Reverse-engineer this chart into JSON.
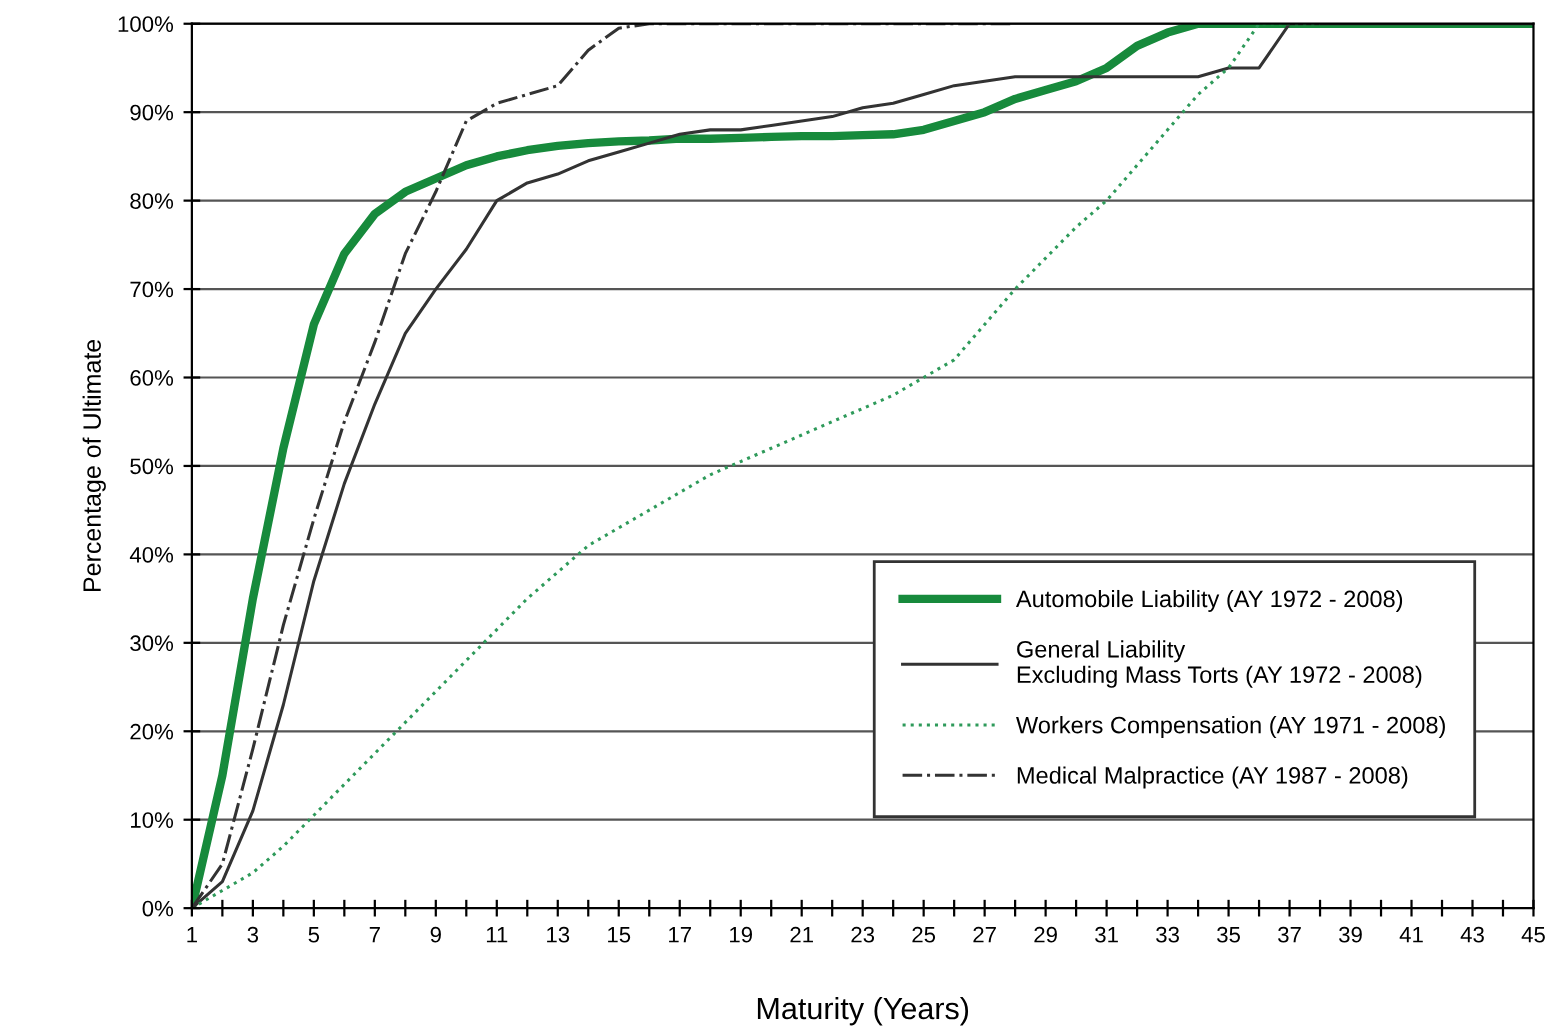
{
  "chart_data": {
    "type": "line",
    "xlabel": "Maturity (Years)",
    "ylabel": "Percentage of Ultimate",
    "xlim": [
      1,
      45
    ],
    "ylim": [
      0,
      100
    ],
    "xticks": [
      1,
      {
        "value": 2,
        "label": null
      },
      3,
      {
        "value": 4,
        "label": null
      },
      5,
      {
        "value": 6,
        "label": null
      },
      7,
      {
        "value": 8,
        "label": null
      },
      9,
      {
        "value": 10,
        "label": null
      },
      11,
      {
        "value": 12,
        "label": null
      },
      13,
      {
        "value": 14,
        "label": null
      },
      15,
      {
        "value": 16,
        "label": null
      },
      17,
      {
        "value": 18,
        "label": null
      },
      19,
      {
        "value": 20,
        "label": null
      },
      21,
      {
        "value": 22,
        "label": null
      },
      23,
      {
        "value": 24,
        "label": null
      },
      25,
      {
        "value": 26,
        "label": null
      },
      27,
      {
        "value": 28,
        "label": null
      },
      29,
      {
        "value": 30,
        "label": null
      },
      31,
      {
        "value": 32,
        "label": null
      },
      33,
      {
        "value": 34,
        "label": null
      },
      35,
      {
        "value": 36,
        "label": null
      },
      37,
      {
        "value": 38,
        "label": null
      },
      39,
      {
        "value": 40,
        "label": null
      },
      41,
      {
        "value": 42,
        "label": null
      },
      43,
      {
        "value": 44,
        "label": null
      },
      45
    ],
    "yticks": [
      {
        "value": 0,
        "label": "0%"
      },
      {
        "value": 10,
        "label": "10%"
      },
      {
        "value": 20,
        "label": "20%"
      },
      {
        "value": 30,
        "label": "30%"
      },
      {
        "value": 40,
        "label": "40%"
      },
      {
        "value": 50,
        "label": "50%"
      },
      {
        "value": 60,
        "label": "60%"
      },
      {
        "value": 70,
        "label": "70%"
      },
      {
        "value": 80,
        "label": "80%"
      },
      {
        "value": 90,
        "label": "90%"
      },
      {
        "value": 100,
        "label": "100%"
      }
    ],
    "grid": "y",
    "legend": "bottom right",
    "marker": "none",
    "series": [
      {
        "name": "Automobile Liability (AY 1972 - 2008)",
        "color": "#178a3c",
        "line_style": "solid",
        "x": [
          1,
          2,
          3,
          4,
          5,
          6,
          7,
          8,
          9,
          10,
          11,
          12,
          13,
          14,
          15,
          16,
          17,
          18,
          19,
          20,
          21,
          22,
          23,
          24,
          25,
          26,
          27,
          28,
          29,
          30,
          31,
          32,
          33,
          34,
          35,
          36,
          37,
          38,
          39,
          40,
          41,
          42,
          43,
          44,
          45
        ],
        "values": [
          0,
          15,
          35,
          52,
          66,
          74,
          78.5,
          81,
          82.5,
          84,
          85,
          85.7,
          86.2,
          86.5,
          86.7,
          86.8,
          87,
          87,
          87.1,
          87.2,
          87.3,
          87.3,
          87.4,
          87.5,
          88,
          89,
          90,
          91.5,
          92.5,
          93.5,
          95,
          97.5,
          99,
          100,
          100,
          100,
          100,
          100,
          100,
          100,
          100,
          100,
          100,
          100,
          100
        ]
      },
      {
        "name": "General Liability\nExcluding Mass Torts (AY 1972 - 2008)",
        "color": "#333333",
        "line_style": "solid",
        "x": [
          1,
          2,
          3,
          4,
          5,
          6,
          7,
          8,
          9,
          10,
          11,
          12,
          13,
          14,
          15,
          16,
          17,
          18,
          19,
          20,
          21,
          22,
          23,
          24,
          25,
          26,
          27,
          28,
          29,
          30,
          31,
          32,
          33,
          34,
          35,
          36,
          37,
          38,
          39,
          40,
          41,
          42,
          43,
          44,
          45
        ],
        "values": [
          0,
          3,
          11,
          23,
          37,
          48,
          57,
          65,
          70,
          74.5,
          80,
          82,
          83,
          84.5,
          85.5,
          86.5,
          87.5,
          88,
          88,
          88.5,
          89,
          89.5,
          90.5,
          91,
          92,
          93,
          93.5,
          94,
          94,
          94,
          94,
          94,
          94,
          94,
          95,
          95,
          100,
          100,
          100,
          100,
          100,
          100,
          100,
          100,
          100
        ]
      },
      {
        "name": "Workers Compensation (AY 1971 - 2008)",
        "color": "#2e9a5a",
        "line_style": "dotted",
        "x": [
          1,
          2,
          3,
          4,
          5,
          6,
          7,
          8,
          9,
          10,
          11,
          12,
          13,
          14,
          15,
          16,
          17,
          18,
          19,
          20,
          21,
          22,
          23,
          24,
          25,
          26,
          27,
          28,
          29,
          30,
          31,
          32,
          33,
          34,
          35,
          36,
          37,
          38
        ],
        "values": [
          0,
          2,
          4,
          7,
          10.5,
          14,
          17.5,
          21,
          24.5,
          28,
          31.5,
          35,
          38,
          41,
          43,
          45,
          47,
          49,
          50.5,
          52,
          53.5,
          55,
          56.5,
          58,
          60,
          62,
          66,
          70,
          73.5,
          77,
          80,
          84,
          88,
          92,
          95,
          100,
          100,
          100
        ]
      },
      {
        "name": "Medical Malpractice (AY 1987 - 2008)",
        "color": "#333333",
        "line_style": "dashdot",
        "x": [
          1,
          2,
          3,
          4,
          5,
          6,
          7,
          8,
          9,
          10,
          11,
          12,
          13,
          14,
          15,
          16,
          17,
          18,
          19,
          20,
          21,
          22,
          23,
          24,
          25,
          26,
          27,
          28
        ],
        "values": [
          0,
          5,
          18,
          32,
          44,
          55,
          64,
          74,
          81,
          89,
          91,
          92,
          93,
          97,
          99.5,
          100,
          100,
          100,
          100,
          100,
          100,
          100,
          100,
          100,
          100,
          100,
          100,
          100
        ]
      }
    ]
  }
}
